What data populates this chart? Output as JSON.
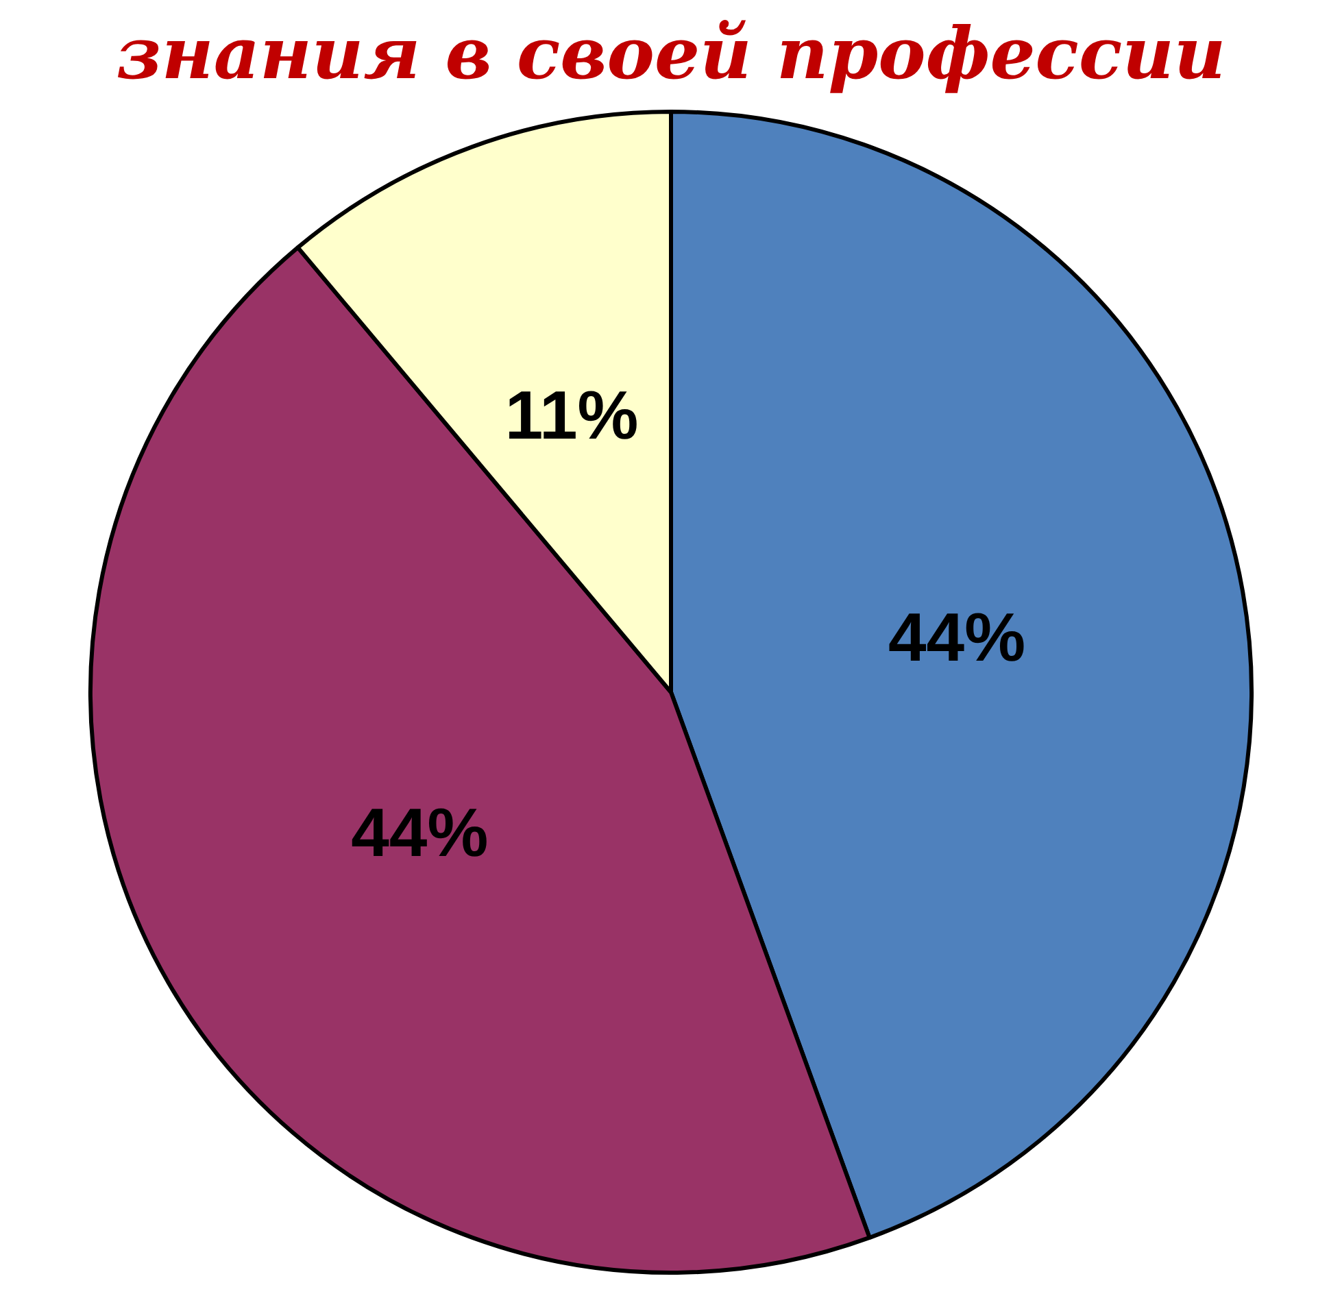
{
  "chart_data": {
    "type": "pie",
    "title": "знания в своей профессии",
    "categories": [
      null,
      null,
      null
    ],
    "values": [
      44,
      44,
      11
    ],
    "colors": [
      "#4f81bd",
      "#993366",
      "#ffffcc"
    ],
    "value_labels": [
      "44%",
      "44%",
      "11%"
    ],
    "legend": false
  }
}
